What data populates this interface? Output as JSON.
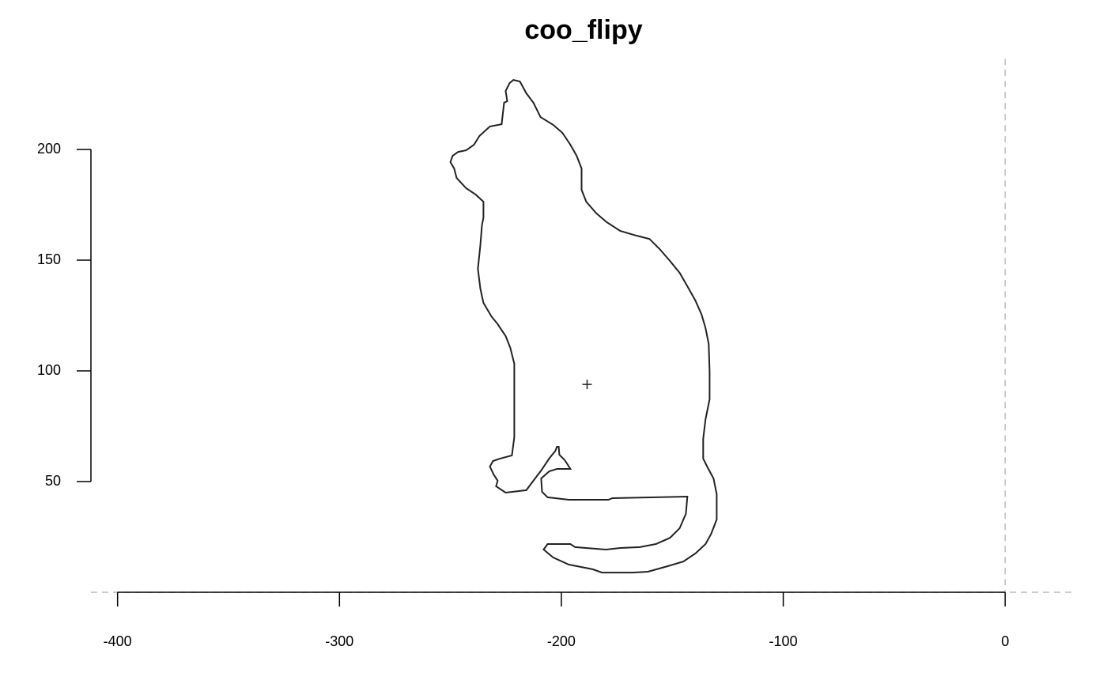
{
  "chart_data": {
    "type": "line",
    "title": "coo_flipy",
    "color": "#222222",
    "xlim": [
      -412,
      32
    ],
    "ylim": [
      0,
      241
    ],
    "xticks": [
      -400,
      -300,
      -200,
      -100,
      0
    ],
    "yticks": [
      50,
      100,
      150,
      200
    ],
    "zero_lines": true,
    "x": [
      -221.6,
      -218.7,
      -215.8,
      -212.6,
      -209.4,
      -203.7,
      -199.5,
      -195.9,
      -193.1,
      -190.9,
      -190.9,
      -188.8,
      -184.2,
      -179.5,
      -173.5,
      -166.3,
      -160.3,
      -155.7,
      -151.0,
      -146.7,
      -143.2,
      -139.6,
      -136.8,
      -135.0,
      -133.6,
      -133.2,
      -133.2,
      -135.0,
      -136.1,
      -136.1,
      -134.3,
      -131.4,
      -130.0,
      -130.0,
      -132.5,
      -135.0,
      -139.6,
      -145.0,
      -152.1,
      -161.0,
      -168.1,
      -181.7,
      -185.9,
      -196.6,
      -203.7,
      -208.0,
      -206.2,
      -195.9,
      -193.8,
      -179.9,
      -173.5,
      -164.6,
      -157.4,
      -151.0,
      -146.7,
      -143.9,
      -143.2,
      -177.0,
      -178.8,
      -196.6,
      -206.2,
      -208.7,
      -209.1,
      -205.5,
      -202.0,
      -195.9,
      -198.4,
      -200.9,
      -201.2,
      -202.0,
      -202.7,
      -205.5,
      -209.1,
      -212.6,
      -215.8,
      -225.1,
      -229.4,
      -228.7,
      -230.5,
      -232.2,
      -230.8,
      -227.6,
      -222.3,
      -221.2,
      -221.2,
      -223.0,
      -225.1,
      -228.7,
      -231.5,
      -235.1,
      -236.5,
      -237.6,
      -236.5,
      -235.8,
      -235.1,
      -235.1,
      -238.6,
      -242.9,
      -247.2,
      -248.3,
      -250.0,
      -249.0,
      -246.5,
      -242.9,
      -239.4,
      -236.9,
      -232.2,
      -226.9,
      -225.8,
      -224.4,
      -225.1,
      -223.3
    ],
    "y": [
      231.4,
      230.7,
      225.4,
      221.1,
      214.6,
      211.1,
      207.5,
      202.1,
      197.1,
      191.4,
      181.8,
      176.4,
      171.1,
      167.1,
      163.2,
      161.1,
      159.6,
      155.0,
      149.6,
      144.3,
      138.2,
      131.8,
      125.4,
      119.3,
      112.1,
      99.6,
      87.1,
      78.2,
      69.3,
      60.4,
      56.8,
      51.4,
      44.3,
      32.9,
      26.4,
      21.8,
      17.5,
      13.9,
      11.8,
      9.3,
      8.9,
      8.9,
      10.4,
      12.5,
      15.7,
      19.3,
      21.8,
      21.8,
      20.4,
      19.3,
      20.0,
      20.4,
      21.8,
      24.6,
      28.9,
      35.4,
      43.2,
      42.5,
      41.8,
      41.8,
      42.9,
      45.4,
      51.4,
      54.6,
      55.7,
      55.7,
      59.6,
      62.1,
      65.7,
      65.7,
      63.9,
      60.4,
      55.0,
      50.4,
      46.1,
      45.0,
      47.9,
      50.4,
      53.2,
      56.8,
      59.3,
      60.4,
      61.8,
      70.0,
      103.2,
      110.4,
      115.7,
      121.1,
      124.6,
      130.7,
      137.1,
      146.1,
      156.8,
      165.7,
      169.3,
      176.4,
      179.6,
      182.5,
      187.1,
      191.4,
      194.3,
      197.1,
      198.9,
      199.6,
      202.1,
      206.1,
      210.4,
      211.4,
      221.1,
      221.8,
      226.4,
      230.0
    ],
    "centroid": {
      "x": -188.4,
      "y": 93.9
    }
  }
}
